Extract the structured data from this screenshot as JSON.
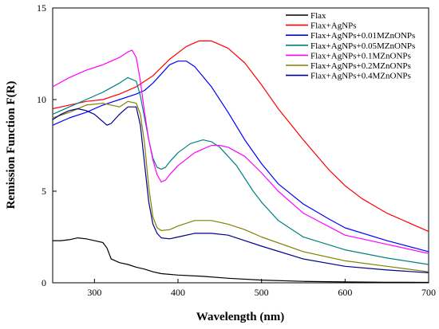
{
  "chart_data": {
    "type": "line",
    "title": "",
    "xlabel": "Wavelength (nm)",
    "ylabel": "Remission Function F(R)",
    "xlim": [
      250,
      700
    ],
    "ylim": [
      0,
      15
    ],
    "xticks": [
      300,
      400,
      500,
      600,
      700
    ],
    "yticks": [
      0,
      5,
      10,
      15
    ],
    "grid": false,
    "legend_position": "top-right",
    "series": [
      {
        "name": "Flax",
        "color": "#000000",
        "x": [
          250,
          260,
          270,
          280,
          290,
          300,
          310,
          315,
          320,
          330,
          340,
          350,
          360,
          370,
          380,
          400,
          430,
          460,
          500,
          550,
          600,
          650,
          700
        ],
        "y": [
          2.3,
          2.3,
          2.35,
          2.45,
          2.4,
          2.3,
          2.2,
          1.9,
          1.3,
          1.1,
          1.0,
          0.85,
          0.75,
          0.6,
          0.5,
          0.42,
          0.35,
          0.25,
          0.15,
          0.08,
          0.05,
          0.03,
          0.02
        ]
      },
      {
        "name": "Flax+AgNPs",
        "color": "#ff0000",
        "x": [
          250,
          270,
          290,
          310,
          330,
          350,
          370,
          390,
          410,
          425,
          440,
          460,
          480,
          500,
          520,
          550,
          580,
          600,
          620,
          650,
          680,
          700
        ],
        "y": [
          9.5,
          9.7,
          9.9,
          10.0,
          10.3,
          10.7,
          11.3,
          12.2,
          12.9,
          13.2,
          13.2,
          12.8,
          12.0,
          10.8,
          9.5,
          7.8,
          6.2,
          5.3,
          4.6,
          3.8,
          3.2,
          2.8
        ]
      },
      {
        "name": "Flax+AgNPs+0.01MZnONPs",
        "color": "#0000ff",
        "x": [
          250,
          270,
          290,
          310,
          330,
          350,
          360,
          370,
          380,
          390,
          400,
          410,
          420,
          440,
          460,
          480,
          500,
          520,
          550,
          580,
          600,
          650,
          700
        ],
        "y": [
          8.6,
          9.0,
          9.3,
          9.7,
          10.0,
          10.3,
          10.5,
          10.9,
          11.4,
          11.9,
          12.1,
          12.1,
          11.8,
          10.7,
          9.3,
          7.8,
          6.5,
          5.4,
          4.3,
          3.5,
          3.0,
          2.3,
          1.7
        ]
      },
      {
        "name": "Flax+AgNPs+0.05MZnONPs",
        "color": "#008080",
        "x": [
          250,
          270,
          290,
          310,
          330,
          340,
          350,
          355,
          360,
          365,
          370,
          375,
          380,
          385,
          390,
          400,
          415,
          430,
          440,
          450,
          470,
          490,
          500,
          520,
          550,
          600,
          650,
          700
        ],
        "y": [
          9.2,
          9.6,
          10.0,
          10.4,
          10.9,
          11.2,
          11.0,
          10.2,
          9.0,
          7.8,
          6.8,
          6.3,
          6.2,
          6.3,
          6.6,
          7.1,
          7.6,
          7.8,
          7.7,
          7.4,
          6.4,
          5.0,
          4.4,
          3.4,
          2.5,
          1.8,
          1.35,
          1.0
        ]
      },
      {
        "name": "Flax+AgNPs+0.1MZnONPs",
        "color": "#ff00ff",
        "x": [
          250,
          270,
          290,
          310,
          330,
          340,
          345,
          350,
          355,
          360,
          365,
          370,
          375,
          380,
          385,
          390,
          400,
          420,
          440,
          450,
          460,
          480,
          500,
          520,
          550,
          600,
          650,
          700
        ],
        "y": [
          10.7,
          11.2,
          11.6,
          11.9,
          12.3,
          12.6,
          12.7,
          12.3,
          11.0,
          9.3,
          7.8,
          6.7,
          5.9,
          5.5,
          5.6,
          5.9,
          6.4,
          7.1,
          7.5,
          7.5,
          7.4,
          6.9,
          6.0,
          5.0,
          3.8,
          2.6,
          2.1,
          1.6
        ]
      },
      {
        "name": "Flax+AgNPs+0.2MZnONPs",
        "color": "#808000",
        "x": [
          250,
          270,
          290,
          310,
          320,
          330,
          340,
          350,
          355,
          360,
          365,
          370,
          375,
          380,
          390,
          400,
          420,
          440,
          460,
          480,
          500,
          550,
          600,
          650,
          700
        ],
        "y": [
          9.0,
          9.3,
          9.7,
          9.8,
          9.7,
          9.6,
          9.9,
          9.8,
          9.2,
          7.6,
          5.2,
          3.6,
          3.0,
          2.85,
          2.9,
          3.1,
          3.4,
          3.4,
          3.2,
          2.9,
          2.5,
          1.7,
          1.2,
          0.9,
          0.6
        ]
      },
      {
        "name": "Flax+AgNPs+0.4MZnONPs",
        "color": "#00008b",
        "x": [
          250,
          260,
          270,
          280,
          290,
          300,
          310,
          315,
          320,
          330,
          340,
          350,
          355,
          360,
          365,
          370,
          375,
          380,
          390,
          400,
          420,
          440,
          460,
          480,
          500,
          550,
          600,
          650,
          700
        ],
        "y": [
          8.9,
          9.2,
          9.4,
          9.5,
          9.4,
          9.2,
          8.8,
          8.6,
          8.7,
          9.2,
          9.6,
          9.6,
          8.6,
          6.5,
          4.4,
          3.2,
          2.7,
          2.45,
          2.4,
          2.5,
          2.7,
          2.7,
          2.6,
          2.3,
          2.0,
          1.3,
          0.9,
          0.7,
          0.55
        ]
      }
    ]
  }
}
